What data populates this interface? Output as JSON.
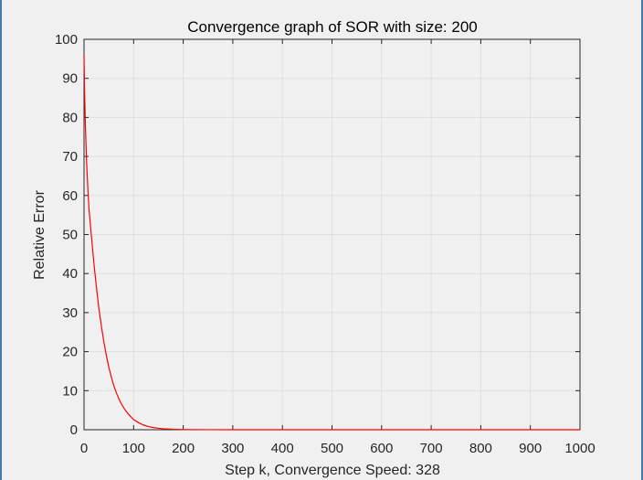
{
  "window": {
    "background": "#f0f0f0",
    "frame_color": "#3c7fb1"
  },
  "chart_data": {
    "type": "line",
    "title": "Convergence graph of SOR with size: 200",
    "xlabel": "Step k, Convergence Speed: 328",
    "ylabel": "Relative Error",
    "xlim": [
      0,
      1000
    ],
    "ylim": [
      0,
      100
    ],
    "xticks": [
      0,
      100,
      200,
      300,
      400,
      500,
      600,
      700,
      800,
      900,
      1000
    ],
    "yticks": [
      0,
      10,
      20,
      30,
      40,
      50,
      60,
      70,
      80,
      90,
      100
    ],
    "grid": true,
    "legend": "none",
    "series": [
      {
        "color": "#ff0000",
        "x": [
          0,
          1,
          3,
          5,
          8,
          10,
          15,
          20,
          25,
          30,
          35,
          40,
          45,
          50,
          55,
          60,
          65,
          70,
          75,
          80,
          85,
          90,
          100,
          110,
          120,
          130,
          140,
          150,
          160,
          170,
          180,
          200,
          250,
          300,
          328,
          400,
          500,
          600,
          700,
          800,
          900,
          1000
        ],
        "y": [
          96,
          87,
          77,
          69,
          61,
          56.5,
          49.5,
          42.5,
          36.5,
          31,
          26.5,
          22.5,
          19,
          16,
          13.5,
          11.3,
          9.5,
          8,
          6.7,
          5.6,
          4.7,
          3.9,
          2.6,
          1.8,
          1.2,
          0.8,
          0.55,
          0.37,
          0.25,
          0.17,
          0.11,
          0.05,
          0.01,
          0.002,
          0.001,
          0,
          0,
          0,
          0,
          0,
          0,
          0
        ]
      }
    ]
  }
}
